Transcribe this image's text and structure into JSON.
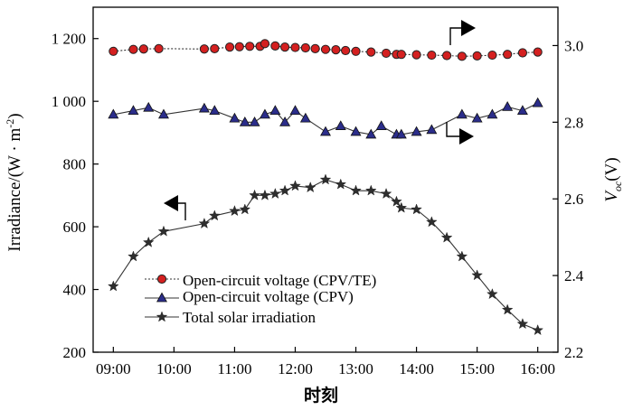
{
  "chart_data": {
    "type": "line",
    "title": "",
    "xlabel": "时刻",
    "ylabel_left": "Irradiance/(W · m",
    "ylabel_left_sup": "-2",
    "ylabel_left_close": ")",
    "ylabel_right_main": "V",
    "ylabel_right_sub": "oc",
    "ylabel_right_unit": "(V)",
    "xlim": [
      8.667,
      16.333
    ],
    "ylim_left": [
      200,
      1300
    ],
    "ylim_right": [
      2.2,
      3.1
    ],
    "x_ticks": [
      {
        "value": 9,
        "label": "09:00"
      },
      {
        "value": 10,
        "label": "10:00"
      },
      {
        "value": 11,
        "label": "11:00"
      },
      {
        "value": 12,
        "label": "12:00"
      },
      {
        "value": 13,
        "label": "13:00"
      },
      {
        "value": 14,
        "label": "14:00"
      },
      {
        "value": 15,
        "label": "15:00"
      },
      {
        "value": 16,
        "label": "16:00"
      }
    ],
    "y_left_ticks": [
      {
        "value": 200,
        "label": "200"
      },
      {
        "value": 400,
        "label": "400"
      },
      {
        "value": 600,
        "label": "600"
      },
      {
        "value": 800,
        "label": "800"
      },
      {
        "value": 1000,
        "label": "1 000"
      },
      {
        "value": 1200,
        "label": "1 200"
      }
    ],
    "y_right_ticks": [
      {
        "value": 2.2,
        "label": "2.2"
      },
      {
        "value": 2.4,
        "label": "2.4"
      },
      {
        "value": 2.6,
        "label": "2.6"
      },
      {
        "value": 2.8,
        "label": "2.8"
      },
      {
        "value": 3.0,
        "label": "3.0"
      }
    ],
    "series": [
      {
        "name": "Open-circuit voltage (CPV/TE)",
        "axis": "right",
        "marker": "circle",
        "color": "#d42020",
        "x": [
          9.0,
          9.33,
          9.5,
          9.75,
          10.5,
          10.67,
          10.92,
          11.08,
          11.25,
          11.42,
          11.5,
          11.67,
          11.83,
          12.0,
          12.17,
          12.33,
          12.5,
          12.67,
          12.83,
          13.0,
          13.25,
          13.5,
          13.67,
          13.75,
          14.0,
          14.25,
          14.5,
          14.75,
          15.0,
          15.25,
          15.5,
          15.75,
          16.0
        ],
        "y": [
          2.985,
          2.99,
          2.991,
          2.992,
          2.991,
          2.992,
          2.996,
          2.997,
          2.998,
          2.998,
          3.005,
          2.999,
          2.996,
          2.995,
          2.994,
          2.992,
          2.99,
          2.989,
          2.987,
          2.985,
          2.983,
          2.98,
          2.977,
          2.977,
          2.976,
          2.975,
          2.974,
          2.972,
          2.973,
          2.975,
          2.977,
          2.981,
          2.983
        ]
      },
      {
        "name": "Open-circuit voltage (CPV)",
        "axis": "right",
        "marker": "triangle",
        "color": "#2b2d8a",
        "x": [
          9.0,
          9.33,
          9.58,
          9.83,
          10.5,
          10.67,
          11.0,
          11.17,
          11.33,
          11.5,
          11.67,
          11.83,
          12.0,
          12.17,
          12.5,
          12.75,
          13.0,
          13.25,
          13.42,
          13.67,
          13.75,
          14.0,
          14.25,
          14.75,
          15.0,
          15.25,
          15.5,
          15.75,
          16.0
        ],
        "y": [
          2.82,
          2.83,
          2.838,
          2.82,
          2.836,
          2.83,
          2.81,
          2.8,
          2.8,
          2.82,
          2.83,
          2.8,
          2.83,
          2.81,
          2.775,
          2.79,
          2.775,
          2.768,
          2.79,
          2.768,
          2.768,
          2.775,
          2.78,
          2.82,
          2.81,
          2.82,
          2.84,
          2.83,
          2.85
        ]
      },
      {
        "name": "Total solar irradiation",
        "axis": "left",
        "marker": "star",
        "color": "#2e2e2e",
        "x": [
          9.0,
          9.33,
          9.58,
          9.83,
          10.5,
          10.67,
          11.0,
          11.17,
          11.33,
          11.5,
          11.67,
          11.83,
          12.0,
          12.25,
          12.5,
          12.75,
          13.0,
          13.25,
          13.5,
          13.67,
          13.75,
          14.0,
          14.25,
          14.5,
          14.75,
          15.0,
          15.25,
          15.5,
          15.75,
          16.0
        ],
        "y": [
          410,
          505,
          550,
          585,
          610,
          635,
          650,
          655,
          700,
          700,
          705,
          715,
          730,
          725,
          750,
          735,
          715,
          715,
          705,
          680,
          660,
          655,
          615,
          565,
          505,
          445,
          385,
          335,
          290,
          270
        ]
      }
    ],
    "legend": {
      "placement": "lower-left",
      "entries": [
        {
          "label": "Open-circuit voltage (CPV/TE)"
        },
        {
          "label": "Open-circuit voltage (CPV)"
        },
        {
          "label": "Total solar irradiation"
        }
      ]
    }
  }
}
